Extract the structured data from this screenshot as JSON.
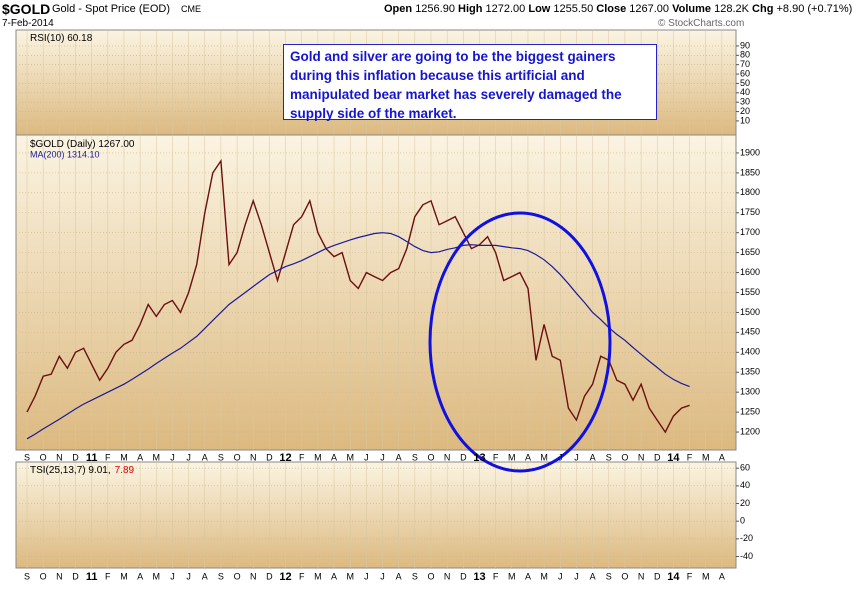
{
  "header": {
    "symbol": "$GOLD",
    "name": "Gold - Spot Price (EOD)",
    "exchange": "CME",
    "date": "7-Feb-2014",
    "stats": [
      {
        "label": "Open",
        "value": "1256.90"
      },
      {
        "label": "High",
        "value": "1272.00"
      },
      {
        "label": "Low",
        "value": "1255.50"
      },
      {
        "label": "Close",
        "value": "1267.00"
      },
      {
        "label": "Volume",
        "value": "128.2K"
      },
      {
        "label": "Chg",
        "value": "+8.90 (+0.71%)"
      }
    ],
    "copyright": "© StockCharts.com"
  },
  "annotation": {
    "lines": [
      "Gold and silver are going to be the biggest gainers",
      "during this inflation because this artificial and",
      "manipulated bear market has severely damaged the",
      "supply side of the market."
    ]
  },
  "chart_data": [
    {
      "type": "indicator",
      "legend": "RSI(10) 60.18",
      "ylim": [
        -5,
        107
      ],
      "yticks": [
        10,
        20,
        30,
        40,
        50,
        60,
        70,
        80,
        90
      ]
    },
    {
      "type": "line",
      "legend": "$GOLD (Daily) 1267.00",
      "ylim": [
        1155,
        1945
      ],
      "yticks": [
        1200,
        1250,
        1300,
        1350,
        1400,
        1450,
        1500,
        1550,
        1600,
        1650,
        1700,
        1750,
        1800,
        1850,
        1900
      ],
      "grid": true,
      "categories": [
        "S",
        null,
        "O",
        null,
        "N",
        null,
        "D",
        null,
        "11",
        null,
        "F",
        null,
        "M",
        null,
        "A",
        null,
        "M",
        null,
        "J",
        null,
        "J",
        null,
        "A",
        null,
        "S",
        null,
        "O",
        null,
        "N",
        null,
        "D",
        null,
        "12",
        null,
        "F",
        null,
        "M",
        null,
        "A",
        null,
        "M",
        null,
        "J",
        null,
        "J",
        null,
        "A",
        null,
        "S",
        null,
        "O",
        null,
        "N",
        null,
        "D",
        null,
        "13",
        null,
        "F",
        null,
        "M",
        null,
        "A",
        null,
        "M",
        null,
        "J",
        null,
        "J",
        null,
        "A",
        null,
        "S",
        null,
        "O",
        null,
        "N",
        null,
        "D",
        null,
        "14",
        null,
        "F",
        null,
        "M",
        null,
        "A",
        null
      ],
      "series": [
        {
          "name": "$GOLD",
          "color": "#6b0f0f",
          "values": [
            1250,
            1290,
            1340,
            1345,
            1390,
            1360,
            1400,
            1410,
            1370,
            1330,
            1360,
            1400,
            1420,
            1430,
            1470,
            1520,
            1490,
            1520,
            1530,
            1500,
            1550,
            1620,
            1750,
            1850,
            1880,
            1620,
            1650,
            1720,
            1780,
            1720,
            1650,
            1580,
            1650,
            1720,
            1740,
            1780,
            1700,
            1660,
            1640,
            1650,
            1580,
            1560,
            1600,
            1590,
            1580,
            1600,
            1610,
            1660,
            1740,
            1770,
            1780,
            1720,
            1730,
            1740,
            1700,
            1660,
            1670,
            1690,
            1650,
            1580,
            1590,
            1600,
            1560,
            1380,
            1470,
            1390,
            1380,
            1260,
            1230,
            1290,
            1320,
            1390,
            1380,
            1330,
            1320,
            1280,
            1320,
            1260,
            1230,
            1200,
            1240,
            1260,
            1267,
            null,
            null,
            null,
            null,
            null
          ]
        },
        {
          "name": "MA(200) 1314.10",
          "color": "#1a1a9c",
          "values": [
            1183,
            1195,
            1208,
            1220,
            1232,
            1245,
            1258,
            1270,
            1280,
            1290,
            1300,
            1310,
            1320,
            1332,
            1345,
            1358,
            1372,
            1385,
            1398,
            1410,
            1425,
            1440,
            1460,
            1480,
            1500,
            1520,
            1535,
            1550,
            1565,
            1580,
            1595,
            1605,
            1615,
            1622,
            1630,
            1640,
            1650,
            1660,
            1668,
            1675,
            1682,
            1688,
            1693,
            1698,
            1700,
            1698,
            1690,
            1678,
            1665,
            1655,
            1650,
            1652,
            1658,
            1662,
            1668,
            1670,
            1668,
            1668,
            1668,
            1665,
            1662,
            1660,
            1655,
            1645,
            1632,
            1615,
            1595,
            1572,
            1548,
            1525,
            1500,
            1482,
            1462,
            1445,
            1430,
            1412,
            1395,
            1378,
            1362,
            1345,
            1332,
            1322,
            1314,
            null,
            null,
            null,
            null,
            null
          ]
        }
      ]
    },
    {
      "type": "indicator",
      "legend": "TSI(25,13,7) 9.01,",
      "legend_value": "7.89",
      "ylim": [
        -53,
        67
      ],
      "yticks": [
        -40,
        -20,
        0,
        20,
        40,
        60
      ]
    }
  ]
}
